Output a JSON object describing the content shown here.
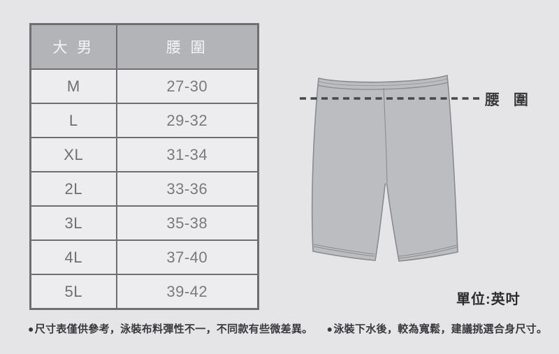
{
  "chart_data": {
    "type": "table",
    "title": "",
    "columns": [
      "大 男",
      "腰 圍"
    ],
    "rows": [
      [
        "M",
        "27-30"
      ],
      [
        "L",
        "29-32"
      ],
      [
        "XL",
        "31-34"
      ],
      [
        "2L",
        "33-36"
      ],
      [
        "3L",
        "35-38"
      ],
      [
        "4L",
        "37-40"
      ],
      [
        "5L",
        "39-42"
      ]
    ],
    "unit_note": "單位:英吋"
  },
  "diagram": {
    "waist_label": "腰 圍",
    "unit_label": "單位:英吋",
    "shape": "swim-shorts"
  },
  "footer": {
    "notes": [
      {
        "bullet": "●",
        "text": "尺寸表僅供參考，泳裝布料彈性不一，不同款有些微差異。"
      },
      {
        "bullet": "●",
        "text": "泳裝下水後，較為寬鬆，建議挑選合身尺寸。"
      }
    ]
  },
  "colors": {
    "background": "#e5e5e7",
    "table_header_bg": "#b3b4b8",
    "table_row_bg": "#ededef",
    "table_border": "#6f6f73",
    "header_text": "#f5f5f7",
    "cell_text": "#7a7a7e",
    "shorts_fill": "#bcbdc1",
    "shorts_outline": "#8b8b8f",
    "dash_line": "#48484c",
    "label_text": "#3a3a3e"
  }
}
